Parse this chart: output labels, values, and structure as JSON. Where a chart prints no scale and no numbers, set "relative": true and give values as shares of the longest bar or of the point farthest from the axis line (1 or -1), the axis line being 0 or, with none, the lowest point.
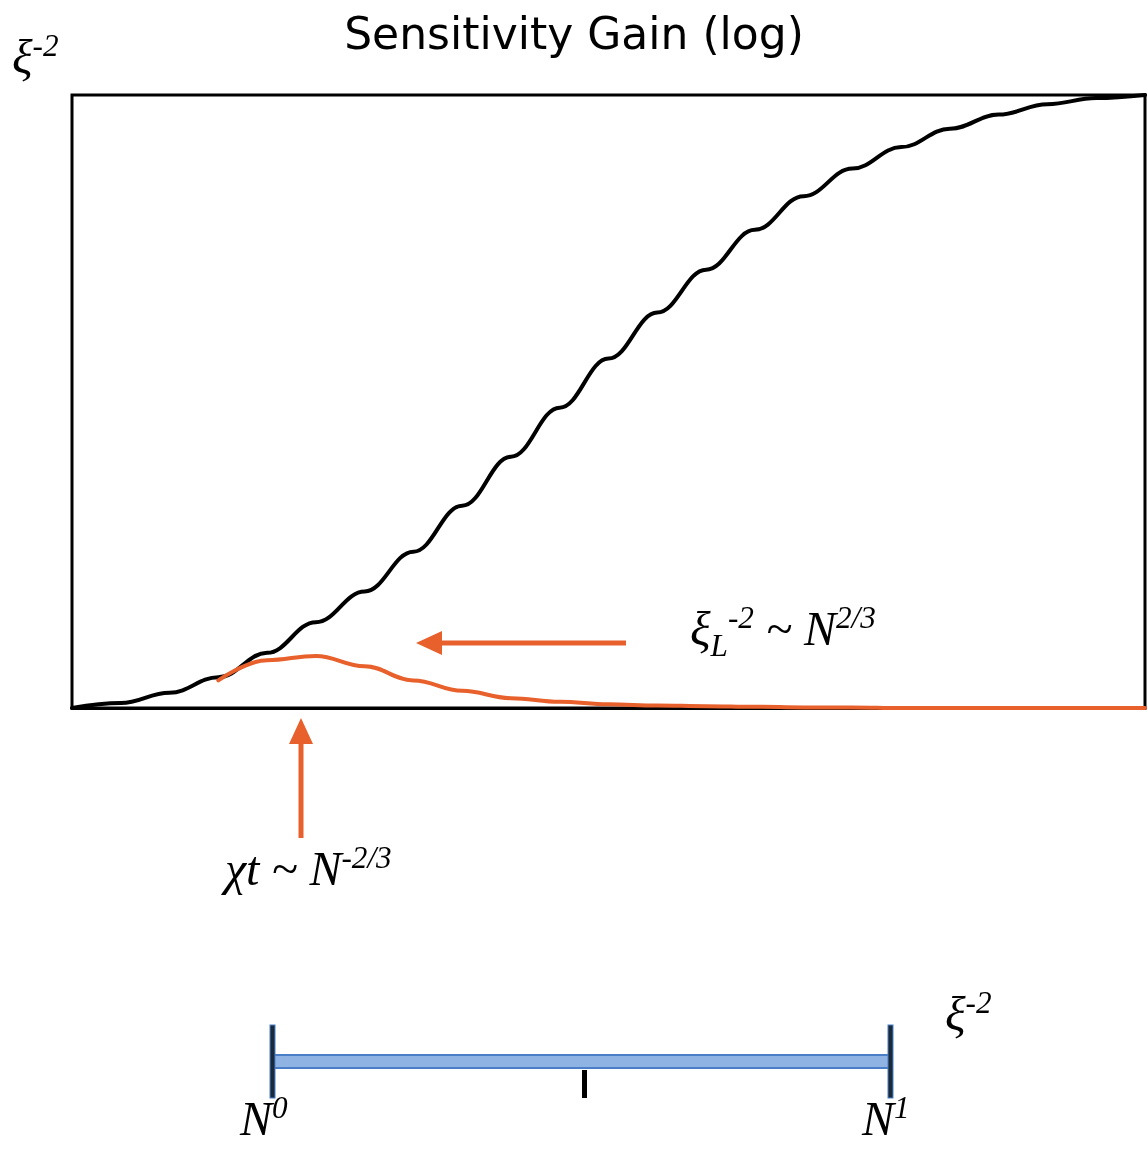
{
  "chart_data": {
    "type": "line",
    "title": "Sensitivity Gain (log)",
    "ylabel": "ξ$^{-2}$",
    "relative": true,
    "categories": [
      null,
      null,
      null,
      null,
      null,
      null,
      null,
      null,
      null,
      null,
      null,
      null,
      null,
      null,
      null,
      null,
      null,
      null,
      null,
      null,
      null,
      null,
      null
    ],
    "series": [
      {
        "color": "#000000",
        "values": [
          0,
          0.008,
          0.025,
          0.05,
          0.09,
          0.14,
          0.19,
          0.255,
          0.33,
          0.41,
          0.49,
          0.57,
          0.645,
          0.715,
          0.78,
          0.835,
          0.88,
          0.915,
          0.945,
          0.968,
          0.985,
          0.995,
          1
        ]
      },
      {
        "color": "#e8602c",
        "values": [
          null,
          null,
          null,
          0.045,
          0.078,
          0.085,
          0.068,
          0.045,
          0.028,
          0.016,
          0.01,
          0.006,
          0.004,
          0.003,
          0.002,
          0.001,
          0.001,
          0,
          0,
          0,
          0,
          0,
          0
        ]
      }
    ],
    "annotations": [
      "ξ$_{L}$$^{-2}$ ~ N$^{2/3}$",
      "χt ~ N$^{-2/3}$",
      "ξ$^{-2}$",
      "N$^{0}$",
      "N$^{1}$"
    ],
    "grid": false,
    "marker": "none"
  }
}
